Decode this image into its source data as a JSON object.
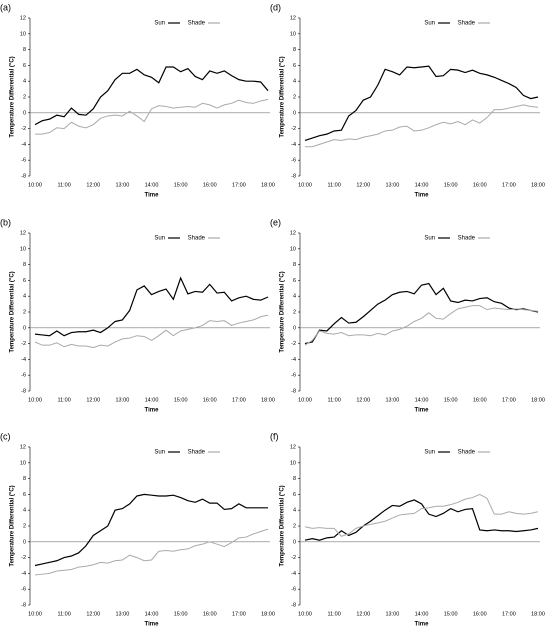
{
  "chart_data": [
    {
      "type": "line",
      "title": "(a)",
      "xlabel": "Time",
      "ylabel": "Temperature Differential (°C)",
      "categories": [
        "10:00",
        null,
        null,
        null,
        "11:00",
        null,
        null,
        null,
        "12:00",
        null,
        null,
        null,
        "13:00",
        null,
        null,
        null,
        "14:00",
        null,
        null,
        null,
        "15:00",
        null,
        null,
        null,
        "16:00",
        null,
        null,
        null,
        "17:00",
        null,
        null,
        null,
        "18:00"
      ],
      "ylim": [
        -8,
        12
      ],
      "yticks": [
        -8,
        -6,
        -4,
        -2,
        0,
        2,
        4,
        6,
        8,
        10,
        12
      ],
      "series": [
        {
          "name": "Sun",
          "color": "#000000",
          "values": [
            -1.5,
            -1,
            -0.8,
            -0.3,
            -0.5,
            0.6,
            -0.2,
            -0.3,
            0.5,
            2,
            2.8,
            4.2,
            5,
            5,
            5.5,
            4.8,
            4.5,
            3.8,
            5.8,
            5.8,
            5.2,
            5.6,
            4.6,
            4.2,
            5.3,
            5,
            5.3,
            4.7,
            4.2,
            4,
            4,
            3.9,
            2.8
          ]
        },
        {
          "name": "Shade",
          "color": "#aaaaaa",
          "values": [
            -2.7,
            -2.7,
            -2.5,
            -1.9,
            -2,
            -1.2,
            -1.7,
            -1.9,
            -1.5,
            -0.7,
            -0.4,
            -0.3,
            -0.4,
            0.2,
            -0.4,
            -1.1,
            0.5,
            0.9,
            0.8,
            0.6,
            0.7,
            0.8,
            0.7,
            1.2,
            1,
            0.6,
            1,
            1.2,
            1.6,
            1.3,
            1.2,
            1.5,
            1.7
          ]
        }
      ]
    },
    {
      "type": "line",
      "title": "(b)",
      "xlabel": "Time",
      "ylabel": "Temperature Differential (°C)",
      "categories": [
        "10:00",
        null,
        null,
        null,
        "11:00",
        null,
        null,
        null,
        "12:00",
        null,
        null,
        null,
        "13:00",
        null,
        null,
        null,
        "14:00",
        null,
        null,
        null,
        "15:00",
        null,
        null,
        null,
        "16:00",
        null,
        null,
        null,
        "17:00",
        null,
        null,
        null,
        "18:00"
      ],
      "ylim": [
        -8,
        12
      ],
      "yticks": [
        -8,
        -6,
        -4,
        -2,
        0,
        2,
        4,
        6,
        8,
        10,
        12
      ],
      "series": [
        {
          "name": "Sun",
          "color": "#000000",
          "values": [
            -0.8,
            -0.9,
            -1,
            -0.4,
            -1,
            -0.6,
            -0.5,
            -0.5,
            -0.3,
            -0.6,
            0,
            0.8,
            1,
            2.2,
            4.8,
            5.3,
            4.2,
            4.6,
            4.9,
            3.6,
            6.3,
            4.3,
            4.6,
            4.5,
            5.5,
            4.4,
            4.5,
            3.4,
            3.8,
            4,
            3.6,
            3.5,
            3.9
          ]
        },
        {
          "name": "Shade",
          "color": "#aaaaaa",
          "values": [
            -1.8,
            -2.2,
            -2.2,
            -1.9,
            -2.4,
            -2.1,
            -2.3,
            -2.3,
            -2.5,
            -2.2,
            -2.3,
            -1.8,
            -1.4,
            -1.3,
            -1,
            -1.1,
            -1.6,
            -1,
            -0.3,
            -1,
            -0.4,
            -0.2,
            0,
            0.3,
            0.9,
            0.8,
            0.9,
            0.3,
            0.6,
            0.8,
            1,
            1.4,
            1.6
          ]
        }
      ]
    },
    {
      "type": "line",
      "title": "(c)",
      "xlabel": "Time",
      "ylabel": "Temperature Differential (°C)",
      "categories": [
        "10:00",
        null,
        null,
        null,
        "11:00",
        null,
        null,
        null,
        "12:00",
        null,
        null,
        null,
        "13:00",
        null,
        null,
        null,
        "14:00",
        null,
        null,
        null,
        "15:00",
        null,
        null,
        null,
        "16:00",
        null,
        null,
        null,
        "17:00",
        null,
        null,
        null,
        "18:00"
      ],
      "ylim": [
        -8,
        12
      ],
      "yticks": [
        -8,
        -6,
        -4,
        -2,
        0,
        2,
        4,
        6,
        8,
        10,
        12
      ],
      "series": [
        {
          "name": "Sun",
          "color": "#000000",
          "values": [
            -3,
            -2.8,
            -2.6,
            -2.4,
            -2,
            -1.8,
            -1.4,
            -0.5,
            0.8,
            1.4,
            2,
            4,
            4.2,
            4.8,
            5.8,
            6,
            5.9,
            5.8,
            5.8,
            5.9,
            5.6,
            5.2,
            5,
            5.4,
            4.9,
            4.9,
            4.1,
            4.2,
            4.8,
            4.3,
            4.3,
            4.3,
            4.3
          ]
        },
        {
          "name": "Shade",
          "color": "#aaaaaa",
          "values": [
            -4.2,
            -4.1,
            -4,
            -3.7,
            -3.6,
            -3.5,
            -3.2,
            -3.1,
            -2.9,
            -2.6,
            -2.7,
            -2.4,
            -2.3,
            -1.7,
            -2,
            -2.4,
            -2.3,
            -1.2,
            -1.1,
            -1.2,
            -1,
            -0.9,
            -0.5,
            -0.3,
            0,
            -0.3,
            -0.6,
            -0.1,
            0.5,
            0.6,
            1,
            1.3,
            1.6
          ]
        }
      ]
    },
    {
      "type": "line",
      "title": "(d)",
      "xlabel": "Time",
      "ylabel": "Temperature Differential (°C)",
      "categories": [
        "10:00",
        null,
        null,
        null,
        "11:00",
        null,
        null,
        null,
        "12:00",
        null,
        null,
        null,
        "13:00",
        null,
        null,
        null,
        "14:00",
        null,
        null,
        null,
        "15:00",
        null,
        null,
        null,
        "16:00",
        null,
        null,
        null,
        "17:00",
        null,
        null,
        null,
        "18:00"
      ],
      "ylim": [
        -8,
        12
      ],
      "yticks": [
        -8,
        -6,
        -4,
        -2,
        0,
        2,
        4,
        6,
        8,
        10,
        12
      ],
      "series": [
        {
          "name": "Sun",
          "color": "#000000",
          "values": [
            -3.5,
            -3.2,
            -2.9,
            -2.7,
            -2.3,
            -2.2,
            -0.4,
            0.3,
            1.6,
            2,
            3.5,
            5.5,
            5.2,
            4.8,
            5.8,
            5.7,
            5.8,
            5.9,
            4.6,
            4.7,
            5.5,
            5.4,
            5.1,
            5.4,
            5,
            4.8,
            4.5,
            4.1,
            3.7,
            3.2,
            2.2,
            1.8,
            2
          ]
        },
        {
          "name": "Shade",
          "color": "#aaaaaa",
          "values": [
            -4.3,
            -4.3,
            -4,
            -3.7,
            -3.4,
            -3.5,
            -3.3,
            -3.4,
            -3.1,
            -2.9,
            -2.7,
            -2.3,
            -2.2,
            -1.8,
            -1.7,
            -2.3,
            -2.2,
            -1.9,
            -1.5,
            -1.2,
            -1.4,
            -1.1,
            -1.5,
            -0.9,
            -1.3,
            -0.6,
            0.4,
            0.4,
            0.6,
            0.8,
            1,
            0.8,
            0.7
          ]
        }
      ]
    },
    {
      "type": "line",
      "title": "(e)",
      "xlabel": "Time",
      "ylabel": "Temperature Differential (°C)",
      "categories": [
        "10:00",
        null,
        null,
        null,
        "11:00",
        null,
        null,
        null,
        "12:00",
        null,
        null,
        null,
        "13:00",
        null,
        null,
        null,
        "14:00",
        null,
        null,
        null,
        "15:00",
        null,
        null,
        null,
        "16:00",
        null,
        null,
        null,
        "17:00",
        null,
        null,
        null,
        "18:00"
      ],
      "ylim": [
        -8,
        12
      ],
      "yticks": [
        -8,
        -6,
        -4,
        -2,
        0,
        2,
        4,
        6,
        8,
        10,
        12
      ],
      "series": [
        {
          "name": "Sun",
          "color": "#000000",
          "values": [
            -2,
            -1.8,
            -0.3,
            -0.4,
            0.5,
            1.3,
            0.6,
            0.7,
            1.4,
            2.2,
            3,
            3.5,
            4.2,
            4.5,
            4.6,
            4.3,
            5.4,
            5.6,
            4.2,
            5,
            3.4,
            3.2,
            3.5,
            3.4,
            3.7,
            3.8,
            3.3,
            3.1,
            2.5,
            2.3,
            2.4,
            2.2,
            2
          ]
        },
        {
          "name": "Shade",
          "color": "#aaaaaa",
          "values": [
            -2.2,
            -1.6,
            -0.4,
            -0.7,
            -0.8,
            -0.6,
            -1,
            -0.9,
            -0.9,
            -1,
            -0.7,
            -0.9,
            -0.4,
            -0.2,
            0.2,
            0.8,
            1.2,
            1.9,
            1.2,
            1.1,
            1.8,
            2.4,
            2.6,
            2.8,
            2.8,
            2.3,
            2.5,
            2.4,
            2.3,
            2.4,
            2.3,
            2.2,
            2.1
          ]
        }
      ]
    },
    {
      "type": "line",
      "title": "(f)",
      "xlabel": "Time",
      "ylabel": "Temperature Differential (°C)",
      "categories": [
        "10:00",
        null,
        null,
        null,
        "11:00",
        null,
        null,
        null,
        "12:00",
        null,
        null,
        null,
        "13:00",
        null,
        null,
        null,
        "14:00",
        null,
        null,
        null,
        "15:00",
        null,
        null,
        null,
        "16:00",
        null,
        null,
        null,
        "17:00",
        null,
        null,
        null,
        "18:00"
      ],
      "ylim": [
        -8,
        12
      ],
      "yticks": [
        -8,
        -6,
        -4,
        -2,
        0,
        2,
        4,
        6,
        8,
        10,
        12
      ],
      "series": [
        {
          "name": "Sun",
          "color": "#000000",
          "values": [
            0.2,
            0.4,
            0.2,
            0.5,
            0.6,
            1.4,
            0.8,
            1.2,
            2,
            2.6,
            3.3,
            4,
            4.6,
            4.5,
            5,
            5.3,
            4.8,
            3.5,
            3.2,
            3.6,
            4.2,
            3.8,
            4.1,
            4.2,
            1.5,
            1.4,
            1.5,
            1.4,
            1.4,
            1.3,
            1.4,
            1.5,
            1.7
          ]
        },
        {
          "name": "Shade",
          "color": "#aaaaaa",
          "values": [
            1.9,
            1.7,
            1.8,
            1.7,
            1.7,
            0.7,
            1,
            1.7,
            2,
            2.2,
            2.4,
            2.6,
            3,
            3.4,
            3.5,
            3.6,
            4.2,
            4.3,
            4.5,
            4.5,
            4.7,
            5,
            5.4,
            5.6,
            6,
            5.5,
            3.5,
            3.5,
            3.8,
            3.6,
            3.5,
            3.6,
            3.8
          ]
        }
      ]
    }
  ]
}
